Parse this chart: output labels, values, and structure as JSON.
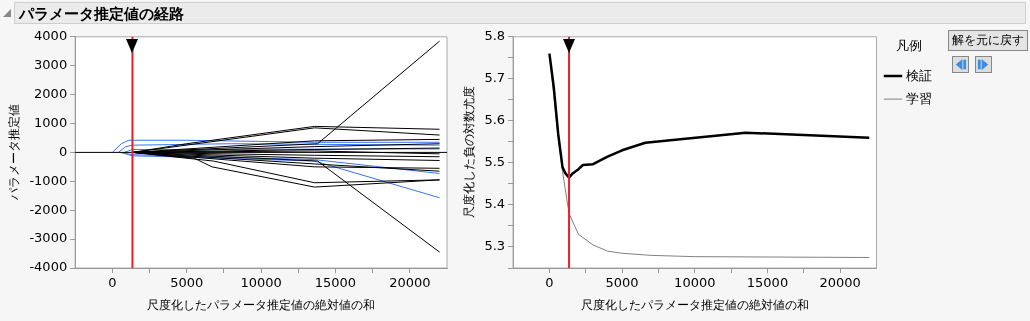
{
  "chart_data": [
    {
      "type": "line",
      "title": "パラメータ推定値の経路",
      "xlabel": "尺度化したパラメータ推定値の絶対値の和",
      "ylabel": "パラメータ推定値",
      "xlim": [
        -2500,
        22500
      ],
      "xticks": [
        0,
        {
          "value": 2500,
          "label": null
        },
        5000,
        {
          "value": 7500,
          "label": null
        },
        10000,
        {
          "value": 12500,
          "label": null
        },
        15000,
        {
          "value": 17500,
          "label": null
        },
        20000
      ],
      "ylim": [
        -4000,
        4000
      ],
      "yticks": [
        -4000,
        -3000,
        -2000,
        -1000,
        0,
        1000,
        2000,
        3000,
        4000
      ],
      "grid": false,
      "legend": false,
      "ref_lines": [
        {
          "axis": "y",
          "value": 0,
          "color": "#000000"
        },
        {
          "axis": "x",
          "value": 1350,
          "color": "#e8202a"
        }
      ],
      "series": [
        {
          "color": "#000000",
          "x": [
            1350,
            13800,
            22000
          ],
          "values": [
            0,
            300,
            3850
          ]
        },
        {
          "color": "#000000",
          "x": [
            1350,
            13800,
            22000
          ],
          "values": [
            0,
            -300,
            -3450
          ]
        },
        {
          "color": "#000000",
          "x": [
            1350,
            5000,
            13600,
            22000
          ],
          "values": [
            0,
            300,
            900,
            800
          ]
        },
        {
          "color": "#000000",
          "x": [
            1350,
            13600,
            22000
          ],
          "values": [
            0,
            850,
            600
          ]
        },
        {
          "color": "#000000",
          "x": [
            1350,
            5500,
            6700,
            13600,
            22000
          ],
          "values": [
            0,
            -200,
            -500,
            -1200,
            -950
          ]
        },
        {
          "color": "#000000",
          "x": [
            1350,
            6800,
            13600,
            22000
          ],
          "values": [
            0,
            -300,
            -1050,
            -950
          ]
        },
        {
          "color": "#000000",
          "x": [
            1350,
            13600,
            22000
          ],
          "values": [
            0,
            -500,
            -550
          ]
        },
        {
          "color": "#000000",
          "x": [
            1350,
            13600,
            22000
          ],
          "values": [
            0,
            -400,
            -650
          ]
        },
        {
          "color": "#000000",
          "x": [
            1350,
            13600,
            22000
          ],
          "values": [
            0,
            400,
            450
          ]
        },
        {
          "color": "#000000",
          "x": [
            1350,
            13600,
            22000
          ],
          "values": [
            0,
            200,
            300
          ]
        },
        {
          "color": "#000000",
          "x": [
            1350,
            13600,
            22000
          ],
          "values": [
            0,
            100,
            150
          ]
        },
        {
          "color": "#000000",
          "x": [
            1350,
            13600,
            22000
          ],
          "values": [
            0,
            -100,
            -150
          ]
        },
        {
          "color": "#000000",
          "x": [
            1350,
            13600,
            22000
          ],
          "values": [
            0,
            -200,
            -280
          ]
        },
        {
          "color": "#000000",
          "x": [
            1350,
            13600,
            22000
          ],
          "values": [
            0,
            50,
            -50
          ]
        },
        {
          "color": "#3b74f0",
          "x": [
            0,
            600,
            1100,
            5000,
            13600,
            22000
          ],
          "values": [
            0,
            300,
            420,
            420,
            350,
            350
          ]
        },
        {
          "color": "#3b74f0",
          "x": [
            400,
            900,
            1350,
            8000,
            22000
          ],
          "values": [
            0,
            200,
            250,
            300,
            250
          ]
        },
        {
          "color": "#3b74f0",
          "x": [
            600,
            1350,
            4000,
            13600,
            22000
          ],
          "values": [
            0,
            -120,
            -150,
            -300,
            -1570
          ]
        },
        {
          "color": "#3b74f0",
          "x": [
            500,
            1350,
            13600,
            22000
          ],
          "values": [
            0,
            -80,
            -250,
            -730
          ]
        },
        {
          "color": "#3b74f0",
          "x": [
            800,
            1350,
            22000
          ],
          "values": [
            0,
            100,
            120
          ]
        }
      ]
    },
    {
      "type": "line",
      "xlabel": "尺度化したパラメータ推定値の絶対値の和",
      "ylabel": "尺度化した負の対数尤度",
      "legend_title": "凡例",
      "legend": "right",
      "annotations": [
        "解を元に戻す"
      ],
      "xlim": [
        -2500,
        22500
      ],
      "xticks": [
        0,
        {
          "value": 2500,
          "label": null
        },
        5000,
        {
          "value": 7500,
          "label": null
        },
        10000,
        {
          "value": 12500,
          "label": null
        },
        15000,
        {
          "value": 17500,
          "label": null
        },
        20000
      ],
      "ylim": [
        5.25,
        5.8
      ],
      "yticks": [
        {
          "value": 5.25,
          "label": null
        },
        5.3,
        {
          "value": 5.35,
          "label": null
        },
        5.4,
        {
          "value": 5.45,
          "label": null
        },
        5.5,
        {
          "value": 5.55,
          "label": null
        },
        5.6,
        {
          "value": 5.65,
          "label": null
        },
        5.7,
        {
          "value": 5.75,
          "label": null
        },
        5.8
      ],
      "grid": false,
      "ref_lines": [
        {
          "axis": "x",
          "value": 1350,
          "color": "#e8202a"
        }
      ],
      "series": [
        {
          "name": "検証",
          "color": "#000000",
          "x": [
            0,
            300,
            600,
            900,
            1100,
            1350,
            1600,
            2000,
            2300,
            3000,
            4000,
            5000,
            6600,
            13500,
            22000
          ],
          "values": [
            5.76,
            5.68,
            5.57,
            5.49,
            5.475,
            5.465,
            5.475,
            5.485,
            5.495,
            5.497,
            5.515,
            5.53,
            5.548,
            5.572,
            5.56
          ]
        },
        {
          "name": "学習",
          "color": "#808080",
          "x": [
            0,
            300,
            600,
            900,
            1350,
            2000,
            3000,
            4000,
            5000,
            7000,
            10000,
            22000
          ],
          "values": [
            5.76,
            5.66,
            5.56,
            5.48,
            5.38,
            5.33,
            5.305,
            5.29,
            5.285,
            5.28,
            5.277,
            5.275
          ]
        }
      ]
    }
  ]
}
